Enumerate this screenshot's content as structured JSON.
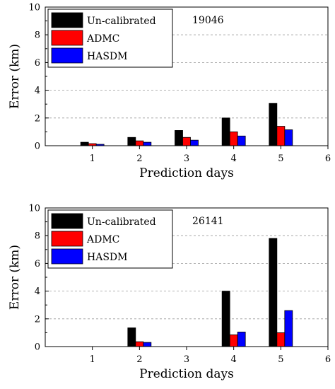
{
  "chart_data": [
    {
      "type": "bar",
      "annotation": "19046",
      "xlabel": "Prediction days",
      "ylabel": "Error (km)",
      "x_ticks": [
        1,
        2,
        3,
        4,
        5,
        6
      ],
      "y_ticks": [
        0,
        2,
        4,
        6,
        8,
        10
      ],
      "xlim": [
        0,
        6
      ],
      "ylim": [
        0,
        10
      ],
      "grid": "horizontal-dashed",
      "legend_position": "top-left",
      "categories": [
        1,
        2,
        3,
        4,
        5
      ],
      "series": [
        {
          "name": "Un-calibrated",
          "color": "#000000",
          "values": [
            0.25,
            0.6,
            1.1,
            2.0,
            3.05
          ]
        },
        {
          "name": "ADMC",
          "color": "#ff0000",
          "values": [
            0.15,
            0.35,
            0.6,
            1.0,
            1.4
          ]
        },
        {
          "name": "HASDM",
          "color": "#0000ff",
          "values": [
            0.1,
            0.25,
            0.4,
            0.7,
            1.15
          ]
        }
      ]
    },
    {
      "type": "bar",
      "annotation": "26141",
      "xlabel": "Prediction days",
      "ylabel": "Error (km)",
      "x_ticks": [
        1,
        2,
        3,
        4,
        5,
        6
      ],
      "y_ticks": [
        0,
        2,
        4,
        6,
        8,
        10
      ],
      "xlim": [
        0,
        6
      ],
      "ylim": [
        0,
        10
      ],
      "grid": "horizontal-dashed",
      "legend_position": "top-left",
      "categories": [
        1,
        2,
        3,
        4,
        5
      ],
      "series": [
        {
          "name": "Un-calibrated",
          "color": "#000000",
          "values": [
            0,
            1.35,
            0,
            4.0,
            7.8
          ]
        },
        {
          "name": "ADMC",
          "color": "#ff0000",
          "values": [
            0,
            0.35,
            0,
            0.85,
            1.0
          ]
        },
        {
          "name": "HASDM",
          "color": "#0000ff",
          "values": [
            0,
            0.3,
            0,
            1.05,
            2.6
          ]
        }
      ]
    }
  ]
}
